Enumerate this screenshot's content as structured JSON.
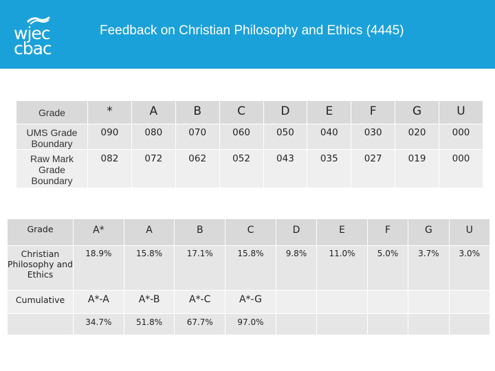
{
  "header": {
    "logo_line1": "wjec",
    "logo_line2": "cbac",
    "title": "Feedback on Christian Philosophy and Ethics (4445)",
    "background_color": "#1ba1d9",
    "logo_icon": "wjec-cbac-logo"
  },
  "boundaries": {
    "row_grade": {
      "label": "Grade",
      "values": [
        "*",
        "A",
        "B",
        "C",
        "D",
        "E",
        "F",
        "G",
        "U"
      ]
    },
    "row_ums": {
      "label": "UMS Grade Boundary",
      "values": [
        "090",
        "080",
        "070",
        "060",
        "050",
        "040",
        "030",
        "020",
        "000"
      ]
    },
    "row_raw": {
      "label": "Raw Mark Grade Boundary",
      "values": [
        "082",
        "072",
        "062",
        "052",
        "043",
        "035",
        "027",
        "019",
        "000"
      ]
    }
  },
  "results": {
    "row_grade": {
      "label": "Grade",
      "values": [
        "A*",
        "A",
        "B",
        "C",
        "D",
        "E",
        "F",
        "G",
        "U"
      ]
    },
    "row_percent": {
      "label": "Christian Philosophy and Ethics",
      "values": [
        "18.9%",
        "15.8%",
        "17.1%",
        "15.8%",
        "9.8%",
        "11.0%",
        "5.0%",
        "3.7%",
        "3.0%"
      ]
    },
    "row_cumulative": {
      "label": "Cumulative",
      "values": [
        "A*-A",
        "A*-B",
        "A*-C",
        "A*-G"
      ]
    },
    "row_cumulative_values": {
      "values": [
        "34.7%",
        "51.8%",
        "67.7%",
        "97.0%"
      ]
    }
  }
}
